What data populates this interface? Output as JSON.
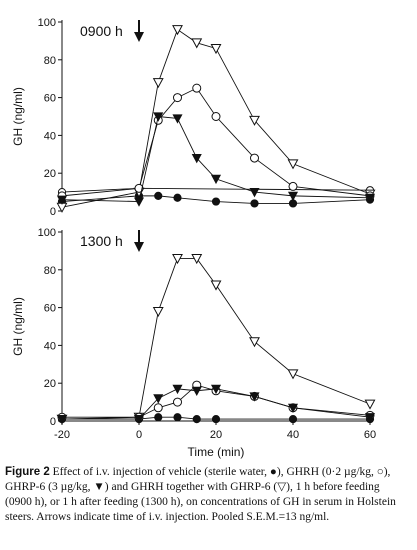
{
  "chart_data": [
    {
      "type": "line",
      "panel_label": "0900 h",
      "xlabel": "",
      "ylabel": "GH (ng/ml)",
      "xlim": [
        -20,
        60
      ],
      "ylim": [
        0,
        100
      ],
      "yticks": [
        "0",
        "20",
        "40",
        "60",
        "80",
        "100"
      ],
      "xticks": [],
      "arrow_at_x": 0,
      "series": [
        {
          "marker": "open-circle-small",
          "x": [
            -20,
            0,
            60
          ],
          "y": [
            10,
            12,
            11
          ]
        },
        {
          "marker": "filled-circle",
          "x": [
            -20,
            0,
            5,
            10,
            20,
            30,
            40,
            60
          ],
          "y": [
            5,
            8,
            8,
            7,
            5,
            4,
            4,
            6
          ]
        },
        {
          "marker": "open-triangle-down",
          "x": [
            -20,
            0,
            5,
            10,
            15,
            20,
            30,
            40,
            60
          ],
          "y": [
            2,
            10,
            68,
            96,
            89,
            86,
            48,
            25,
            9
          ]
        },
        {
          "marker": "open-circle",
          "x": [
            -20,
            0,
            5,
            10,
            15,
            20,
            30,
            40,
            60
          ],
          "y": [
            8,
            12,
            48,
            60,
            65,
            50,
            28,
            13,
            8
          ]
        },
        {
          "marker": "filled-triangle-down",
          "x": [
            -20,
            0,
            5,
            10,
            15,
            20,
            30,
            40,
            60
          ],
          "y": [
            6,
            5,
            50,
            49,
            28,
            17,
            10,
            8,
            7
          ]
        }
      ]
    },
    {
      "type": "line",
      "panel_label": "1300 h",
      "xlabel": "Time (min)",
      "ylabel": "GH (ng/ml)",
      "xlim": [
        -20,
        60
      ],
      "ylim": [
        0,
        100
      ],
      "yticks": [
        "0",
        "20",
        "40",
        "60",
        "80",
        "100"
      ],
      "xticks": [
        "-20",
        "0",
        "20",
        "40",
        "60"
      ],
      "arrow_at_x": 0,
      "series": [
        {
          "marker": "filled-circle",
          "x": [
            -20,
            0,
            5,
            10,
            15,
            20,
            40,
            60
          ],
          "y": [
            1,
            1,
            2,
            2,
            1,
            1,
            1,
            1
          ]
        },
        {
          "marker": "open-triangle-down",
          "x": [
            -20,
            0,
            5,
            10,
            15,
            20,
            30,
            40,
            60
          ],
          "y": [
            1,
            2,
            58,
            86,
            86,
            72,
            42,
            25,
            9
          ]
        },
        {
          "marker": "open-circle",
          "x": [
            -20,
            0,
            5,
            10,
            15,
            20,
            30,
            40,
            60
          ],
          "y": [
            2,
            2,
            7,
            10,
            19,
            16,
            13,
            7,
            3
          ]
        },
        {
          "marker": "filled-triangle-down",
          "x": [
            -20,
            0,
            5,
            10,
            15,
            20,
            30,
            40,
            60
          ],
          "y": [
            1,
            1,
            12,
            17,
            16,
            17,
            13,
            7,
            2
          ]
        }
      ]
    }
  ],
  "caption": {
    "label": "Figure 2",
    "text": "Effect of i.v. injection of vehicle (sterile water, ●), GHRH (0·2 µg/kg, ○), GHRP-6 (3 µg/kg, ▼) and GHRH together with GHRP-6 (▽), 1 h before feeding (0900 h), or 1 h after feeding (1300 h), on concentrations of GH in serum in Holstein steers. Arrows indicate time of i.v. injection. Pooled S.E.M.=13 ng/ml."
  }
}
